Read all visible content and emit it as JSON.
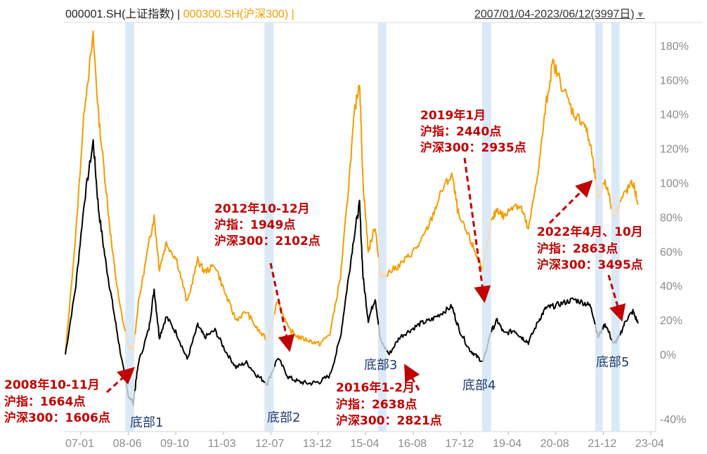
{
  "header": {
    "series1_label": "000001.SH(上证指数)",
    "separator": " | ",
    "series2_label": "000300.SH(沪深300)",
    "separator2": " |",
    "date_range": "2007/01/04-2023/06/12(3997日)",
    "dropdown_icon": "triangle-down-icon"
  },
  "colors": {
    "shanghai": "#000000",
    "csi300": "#f59c00",
    "shanghai_shaded": "#b0b8c0",
    "csi300_shaded": "#f2dcc0",
    "bottom_band": "#dbe9f6",
    "annotation": "#c00000",
    "bottom_label": "#1f3a6e"
  },
  "chart_data": {
    "type": "line",
    "title": "",
    "xlabel": "",
    "ylabel": "",
    "ylim": [
      -45,
      185
    ],
    "x_ticks": [
      "07-01",
      "08-06",
      "09-10",
      "11-03",
      "12-07",
      "13-12",
      "15-04",
      "16-08",
      "17-12",
      "19-04",
      "20-08",
      "21-12",
      "23-04"
    ],
    "y_ticks": [
      "180%",
      "160%",
      "140%",
      "120%",
      "100%",
      "80%",
      "60%",
      "40%",
      "20%",
      "0%",
      "-40%"
    ],
    "y_tick_values": [
      180,
      160,
      140,
      120,
      100,
      80,
      60,
      40,
      20,
      0,
      -40
    ],
    "series": [
      {
        "name": "000001.SH(上证指数)",
        "color": "#000000",
        "points": [
          [
            2007.0,
            0
          ],
          [
            2007.3,
            40
          ],
          [
            2007.55,
            90
          ],
          [
            2007.8,
            124
          ],
          [
            2007.95,
            85
          ],
          [
            2008.15,
            55
          ],
          [
            2008.35,
            30
          ],
          [
            2008.55,
            5
          ],
          [
            2008.8,
            -25
          ],
          [
            2008.95,
            -30
          ],
          [
            2009.1,
            -5
          ],
          [
            2009.4,
            15
          ],
          [
            2009.55,
            38
          ],
          [
            2009.7,
            10
          ],
          [
            2009.9,
            22
          ],
          [
            2010.2,
            12
          ],
          [
            2010.5,
            -3
          ],
          [
            2010.8,
            17
          ],
          [
            2011.0,
            10
          ],
          [
            2011.3,
            14
          ],
          [
            2011.6,
            2
          ],
          [
            2011.9,
            -8
          ],
          [
            2012.2,
            -5
          ],
          [
            2012.5,
            -13
          ],
          [
            2012.8,
            -18
          ],
          [
            2013.1,
            -2
          ],
          [
            2013.4,
            -14
          ],
          [
            2013.7,
            -17
          ],
          [
            2014.0,
            -18
          ],
          [
            2014.3,
            -17
          ],
          [
            2014.6,
            -13
          ],
          [
            2014.9,
            10
          ],
          [
            2015.1,
            40
          ],
          [
            2015.3,
            70
          ],
          [
            2015.45,
            88
          ],
          [
            2015.55,
            45
          ],
          [
            2015.7,
            20
          ],
          [
            2015.9,
            33
          ],
          [
            2016.05,
            8
          ],
          [
            2016.3,
            0
          ],
          [
            2016.6,
            10
          ],
          [
            2016.9,
            14
          ],
          [
            2017.2,
            18
          ],
          [
            2017.5,
            20
          ],
          [
            2017.8,
            24
          ],
          [
            2018.1,
            28
          ],
          [
            2018.3,
            15
          ],
          [
            2018.6,
            3
          ],
          [
            2018.8,
            -1
          ],
          [
            2019.0,
            -5
          ],
          [
            2019.2,
            12
          ],
          [
            2019.4,
            20
          ],
          [
            2019.6,
            12
          ],
          [
            2019.9,
            14
          ],
          [
            2020.1,
            10
          ],
          [
            2020.3,
            7
          ],
          [
            2020.6,
            20
          ],
          [
            2020.8,
            27
          ],
          [
            2021.0,
            28
          ],
          [
            2021.3,
            30
          ],
          [
            2021.6,
            32
          ],
          [
            2021.9,
            30
          ],
          [
            2022.1,
            28
          ],
          [
            2022.3,
            10
          ],
          [
            2022.5,
            18
          ],
          [
            2022.75,
            6
          ],
          [
            2022.9,
            10
          ],
          [
            2023.1,
            20
          ],
          [
            2023.3,
            25
          ],
          [
            2023.45,
            18
          ]
        ]
      },
      {
        "name": "000300.SH(沪深300)",
        "color": "#f59c00",
        "points": [
          [
            2007.0,
            0
          ],
          [
            2007.3,
            70
          ],
          [
            2007.55,
            145
          ],
          [
            2007.8,
            185
          ],
          [
            2007.95,
            140
          ],
          [
            2008.15,
            100
          ],
          [
            2008.35,
            60
          ],
          [
            2008.55,
            30
          ],
          [
            2008.8,
            5
          ],
          [
            2008.95,
            3
          ],
          [
            2009.1,
            30
          ],
          [
            2009.4,
            65
          ],
          [
            2009.55,
            80
          ],
          [
            2009.7,
            50
          ],
          [
            2009.9,
            65
          ],
          [
            2010.2,
            55
          ],
          [
            2010.5,
            30
          ],
          [
            2010.8,
            55
          ],
          [
            2011.0,
            48
          ],
          [
            2011.3,
            52
          ],
          [
            2011.6,
            35
          ],
          [
            2011.9,
            20
          ],
          [
            2012.2,
            25
          ],
          [
            2012.5,
            15
          ],
          [
            2012.8,
            8
          ],
          [
            2013.1,
            32
          ],
          [
            2013.4,
            15
          ],
          [
            2013.7,
            10
          ],
          [
            2014.0,
            8
          ],
          [
            2014.3,
            6
          ],
          [
            2014.6,
            12
          ],
          [
            2014.9,
            45
          ],
          [
            2015.1,
            90
          ],
          [
            2015.3,
            140
          ],
          [
            2015.45,
            160
          ],
          [
            2015.55,
            100
          ],
          [
            2015.7,
            60
          ],
          [
            2015.9,
            75
          ],
          [
            2016.05,
            45
          ],
          [
            2016.3,
            48
          ],
          [
            2016.6,
            52
          ],
          [
            2016.9,
            58
          ],
          [
            2017.2,
            65
          ],
          [
            2017.5,
            78
          ],
          [
            2017.8,
            95
          ],
          [
            2018.1,
            105
          ],
          [
            2018.3,
            80
          ],
          [
            2018.6,
            68
          ],
          [
            2018.8,
            58
          ],
          [
            2019.0,
            50
          ],
          [
            2019.2,
            75
          ],
          [
            2019.4,
            85
          ],
          [
            2019.6,
            80
          ],
          [
            2019.9,
            88
          ],
          [
            2020.1,
            85
          ],
          [
            2020.3,
            72
          ],
          [
            2020.6,
            110
          ],
          [
            2020.8,
            145
          ],
          [
            2021.0,
            170
          ],
          [
            2021.3,
            155
          ],
          [
            2021.6,
            140
          ],
          [
            2021.9,
            135
          ],
          [
            2022.1,
            120
          ],
          [
            2022.3,
            90
          ],
          [
            2022.5,
            102
          ],
          [
            2022.75,
            80
          ],
          [
            2022.9,
            88
          ],
          [
            2023.1,
            95
          ],
          [
            2023.3,
            100
          ],
          [
            2023.45,
            88
          ]
        ]
      }
    ],
    "bottom_bands": [
      [
        2008.72,
        2008.98
      ],
      [
        2012.72,
        2012.98
      ],
      [
        2015.98,
        2016.22
      ],
      [
        2018.97,
        2019.23
      ],
      [
        2022.22,
        2022.43
      ],
      [
        2022.68,
        2022.92
      ]
    ],
    "annotations": [
      {
        "lines": [
          "2008年10-11月",
          "沪指：1664点",
          "沪深300：1606点"
        ]
      },
      {
        "lines": [
          "2012年10-12月",
          "沪指：1949点",
          "沪深300：2102点"
        ]
      },
      {
        "lines": [
          "2016年1-2月",
          "沪指：2638点",
          "沪深300：2821点"
        ]
      },
      {
        "lines": [
          "2019年1月",
          "沪指：2440点",
          "沪深300：2935点"
        ]
      },
      {
        "lines": [
          "2022年4月、10月",
          "沪指：2863点",
          "沪深300：3495点"
        ]
      }
    ],
    "bottom_labels": [
      "底部1",
      "底部2",
      "底部3",
      "底部4",
      "底部5"
    ]
  }
}
